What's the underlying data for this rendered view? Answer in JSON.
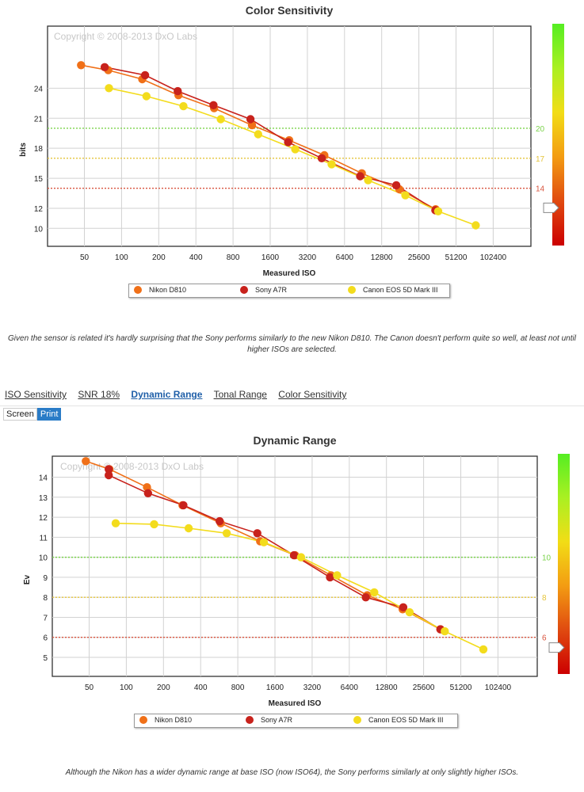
{
  "chart_data": [
    {
      "type": "line",
      "title": "Color Sensitivity",
      "xlabel": "Measured ISO",
      "ylabel": "bits",
      "xscale": "log2",
      "x_ticks": [
        "50",
        "100",
        "200",
        "400",
        "800",
        "1600",
        "3200",
        "6400",
        "12800",
        "25600",
        "51200",
        "102400"
      ],
      "y_ticks": [
        10,
        12,
        15,
        18,
        21,
        24
      ],
      "ylim": [
        8.2,
        30.2
      ],
      "grid": true,
      "watermark": "Copyright © 2008-2013 DxO Labs",
      "thresholds": [
        {
          "value": 20,
          "label": "20",
          "color": "#7bd34b"
        },
        {
          "value": 17,
          "label": "17",
          "color": "#e5c43a"
        },
        {
          "value": 14,
          "label": "14",
          "color": "#d9543e"
        }
      ],
      "scale_bar_colors": [
        "#55ee22",
        "#aaf022",
        "#f2dd16",
        "#f39c12",
        "#e04a10",
        "#cc0000"
      ],
      "series": [
        {
          "name": "Nikon D810",
          "color": "#f07018",
          "x": [
            47,
            78,
            147,
            289,
            562,
            1139,
            2282,
            4391,
            8830,
            17800,
            35000
          ],
          "y": [
            26.3,
            25.8,
            24.9,
            23.3,
            22.0,
            20.3,
            18.8,
            17.3,
            15.5,
            13.9,
            11.9
          ]
        },
        {
          "name": "Sony A7R",
          "color": "#c8221c",
          "x": [
            73,
            155,
            285,
            555,
            1108,
            2233,
            4180,
            8565,
            16800,
            34800
          ],
          "y": [
            26.1,
            25.3,
            23.7,
            22.3,
            20.9,
            18.6,
            17.0,
            15.2,
            14.3,
            11.8
          ]
        },
        {
          "name": "Canon EOS 5D Mark III",
          "color": "#f3dc1d",
          "x": [
            79,
            159,
            317,
            636,
            1279,
            2553,
            5031,
            9942,
            19900,
            36700,
            74000
          ],
          "y": [
            24.0,
            23.2,
            22.2,
            20.9,
            19.4,
            17.9,
            16.4,
            14.8,
            13.3,
            11.7,
            10.3
          ]
        }
      ]
    },
    {
      "type": "line",
      "title": "Dynamic Range",
      "xlabel": "Measured ISO",
      "ylabel": "Ev",
      "xscale": "log2",
      "x_ticks": [
        "50",
        "100",
        "200",
        "400",
        "800",
        "1600",
        "3200",
        "6400",
        "12800",
        "25600",
        "51200",
        "102400"
      ],
      "y_ticks": [
        5,
        6,
        7,
        8,
        9,
        10,
        11,
        12,
        13,
        14
      ],
      "ylim": [
        4.05,
        15.05
      ],
      "grid": true,
      "watermark": "Copyright © 2008-2013 DxO Labs",
      "thresholds": [
        {
          "value": 10,
          "label": "10",
          "color": "#7bd34b"
        },
        {
          "value": 8,
          "label": "8",
          "color": "#e5c43a"
        },
        {
          "value": 6,
          "label": "6",
          "color": "#d9543e"
        }
      ],
      "scale_bar_colors": [
        "#55ee22",
        "#aaf022",
        "#f2dd16",
        "#f39c12",
        "#e04a10",
        "#cc0000"
      ],
      "series": [
        {
          "name": "Nikon D810",
          "color": "#f07018",
          "x": [
            47,
            73,
            147,
            285,
            582,
            1214,
            2330,
            4550,
            8950,
            17300,
            35000
          ],
          "y": [
            14.8,
            14.4,
            13.5,
            12.6,
            11.7,
            10.8,
            10.1,
            9.1,
            8.1,
            7.4,
            6.4
          ]
        },
        {
          "name": "Sony A7R",
          "color": "#c8221c",
          "x": [
            72,
            72,
            150,
            290,
            570,
            1150,
            2280,
            4470,
            8700,
            17500,
            35000
          ],
          "y": [
            14.4,
            14.1,
            13.2,
            12.6,
            11.8,
            11.2,
            10.1,
            9.0,
            8.0,
            7.5,
            6.4
          ]
        },
        {
          "name": "Canon EOS 5D Mark III",
          "color": "#f3dc1d",
          "x": [
            82,
            168,
            320,
            650,
            1300,
            2600,
            5100,
            10200,
            19700,
            38000,
            78000
          ],
          "y": [
            11.7,
            11.65,
            11.45,
            11.2,
            10.75,
            10.0,
            9.1,
            8.25,
            7.25,
            6.3,
            5.4
          ]
        }
      ]
    }
  ],
  "captions": {
    "color": "Given the sensor is related it's hardly surprising that the Sony performs similarly to the new Nikon D810. The Canon doesn't perform quite so well, at least not until higher ISOs are selected.",
    "dynamic": "Although the Nikon has a wider dynamic range at base ISO (now ISO64), the Sony performs similarly at only slightly higher ISOs."
  },
  "tabs": [
    {
      "label": "ISO Sensitivity",
      "active": false
    },
    {
      "label": "SNR 18%",
      "active": false
    },
    {
      "label": "Dynamic Range",
      "active": true
    },
    {
      "label": "Tonal Range",
      "active": false
    },
    {
      "label": "Color Sensitivity",
      "active": false
    }
  ],
  "display_mode": {
    "screen": "Screen",
    "print": "Print",
    "active": "print"
  }
}
